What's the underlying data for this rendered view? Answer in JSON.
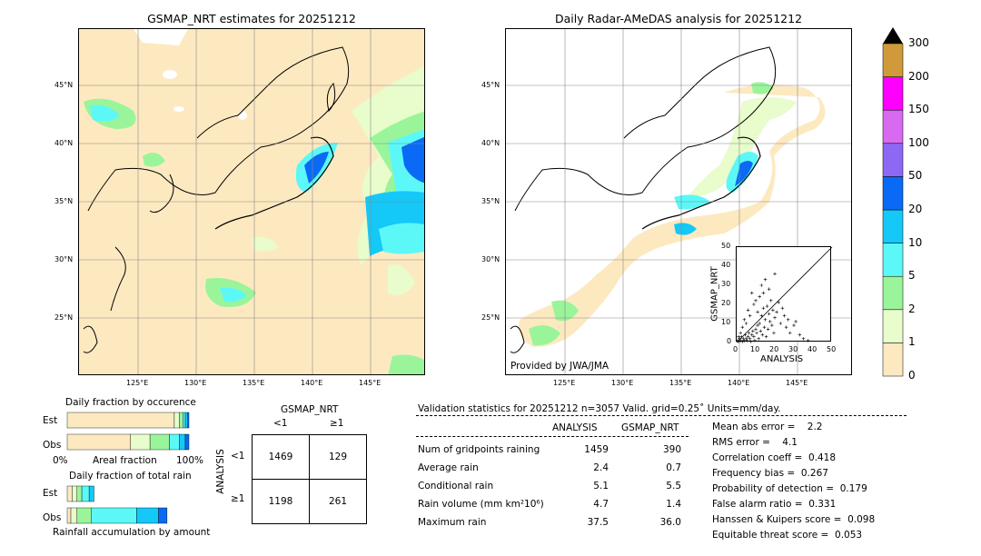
{
  "map_left": {
    "title": "GSMAP_NRT estimates for 20251212",
    "lon_ticks": [
      "125°E",
      "130°E",
      "135°E",
      "140°E",
      "145°E"
    ],
    "lat_ticks": [
      "45°N",
      "40°N",
      "35°N",
      "30°N",
      "25°N"
    ]
  },
  "map_right": {
    "title": "Daily Radar-AMeDAS analysis for 20251212",
    "lon_ticks": [
      "125°E",
      "130°E",
      "135°E",
      "140°E",
      "145°E"
    ],
    "lat_ticks": [
      "45°N",
      "40°N",
      "35°N",
      "30°N",
      "25°N"
    ],
    "credit": "Provided by JWA/JMA"
  },
  "colorbar": {
    "labels": [
      "0",
      "1",
      "2",
      "5",
      "10",
      "20",
      "50",
      "100",
      "150",
      "200",
      "300"
    ],
    "colors": [
      "#fde9c0",
      "#e8fccc",
      "#9af59a",
      "#5cf8f8",
      "#14c8f8",
      "#0a6af5",
      "#8c68f5",
      "#d86af2",
      "#ff00ff",
      "#d09a3a"
    ]
  },
  "chart_data": [
    {
      "type": "scatter",
      "xlabel": "ANALYSIS",
      "ylabel": "GSMAP_NRT",
      "xlim": [
        0,
        50
      ],
      "ylim": [
        0,
        50
      ],
      "x_ticks": [
        "0",
        "10",
        "20",
        "30",
        "40",
        "50"
      ],
      "y_ticks": [
        "0",
        "10",
        "20",
        "30",
        "40",
        "50"
      ],
      "points": [
        [
          0.5,
          1
        ],
        [
          1,
          0.5
        ],
        [
          1.5,
          2
        ],
        [
          2,
          1
        ],
        [
          2.5,
          3
        ],
        [
          3,
          0.5
        ],
        [
          3.5,
          2
        ],
        [
          4,
          1
        ],
        [
          4.5,
          4
        ],
        [
          5,
          2
        ],
        [
          5.5,
          1
        ],
        [
          6,
          3
        ],
        [
          6.5,
          5
        ],
        [
          7,
          2
        ],
        [
          7.5,
          0.5
        ],
        [
          8,
          4
        ],
        [
          8.5,
          6
        ],
        [
          9,
          3
        ],
        [
          9.5,
          1
        ],
        [
          10,
          7
        ],
        [
          10.5,
          5
        ],
        [
          11,
          9
        ],
        [
          11.5,
          2
        ],
        [
          12,
          10
        ],
        [
          12.5,
          6
        ],
        [
          13,
          14
        ],
        [
          13.5,
          4
        ],
        [
          14,
          18
        ],
        [
          14.5,
          8
        ],
        [
          15,
          12
        ],
        [
          15.5,
          3
        ],
        [
          16,
          19
        ],
        [
          16.5,
          7
        ],
        [
          17,
          15
        ],
        [
          17.5,
          11
        ],
        [
          18,
          22
        ],
        [
          18.5,
          9
        ],
        [
          19,
          17
        ],
        [
          19.5,
          5
        ],
        [
          20,
          13
        ],
        [
          21,
          16
        ],
        [
          22,
          21
        ],
        [
          23,
          10
        ],
        [
          24,
          18
        ],
        [
          25,
          14
        ],
        [
          26,
          8
        ],
        [
          27,
          12
        ],
        [
          28,
          5
        ],
        [
          30,
          9
        ],
        [
          31,
          11
        ],
        [
          33,
          4
        ],
        [
          35,
          2
        ],
        [
          37.5,
          1
        ],
        [
          20,
          36
        ],
        [
          17,
          28
        ],
        [
          12,
          24
        ],
        [
          9,
          20
        ],
        [
          8,
          26
        ],
        [
          15,
          33
        ],
        [
          14,
          26
        ],
        [
          6,
          17
        ],
        [
          4,
          12
        ],
        [
          3,
          8
        ],
        [
          11,
          16
        ],
        [
          2,
          5
        ],
        [
          1,
          3
        ],
        [
          7,
          14
        ],
        [
          10,
          22
        ],
        [
          13,
          30
        ],
        [
          5,
          10
        ]
      ]
    },
    {
      "type": "bar",
      "title": "Daily fraction by occurence",
      "categories": [
        "Est",
        "Obs"
      ],
      "left_tick": "0%",
      "right_tick": "100%",
      "center_label": "Areal fraction",
      "series_colors": [
        "#fde9c0",
        "#e8fccc",
        "#9af59a",
        "#5cf8f8",
        "#14c8f8",
        "#0a6af5"
      ],
      "rows": [
        {
          "name": "Est",
          "fractions": [
            0.88,
            0.04,
            0.03,
            0.02,
            0.02,
            0.01
          ]
        },
        {
          "name": "Obs",
          "fractions": [
            0.52,
            0.16,
            0.16,
            0.08,
            0.05,
            0.03
          ]
        }
      ]
    },
    {
      "type": "bar",
      "title": "Daily fraction of total rain",
      "categories": [
        "Est",
        "Obs"
      ],
      "bottom_label": "Rainfall accumulation by amount",
      "series_colors": [
        "#fde9c0",
        "#e8fccc",
        "#9af59a",
        "#5cf8f8",
        "#14c8f8",
        "#0a6af5"
      ],
      "rows": [
        {
          "name": "Est",
          "fractions": [
            0.04,
            0.04,
            0.04,
            0.06,
            0.04,
            0.0
          ],
          "scale": 0.25
        },
        {
          "name": "Obs",
          "fractions": [
            0.03,
            0.05,
            0.12,
            0.37,
            0.18,
            0.07
          ],
          "scale": 1.0
        }
      ]
    }
  ],
  "contingency": {
    "header": "GSMAP_NRT",
    "col_labels": [
      "<1",
      "≥1"
    ],
    "row_title": "ANALYSIS",
    "row_labels": [
      "<1",
      "≥1"
    ],
    "cells": [
      [
        "1469",
        "129"
      ],
      [
        "1198",
        "261"
      ]
    ]
  },
  "validation": {
    "title": "Validation statistics for 20251212  n=3057 Valid. grid=0.25˚ Units=mm/day.",
    "col_analysis": "ANALYSIS",
    "col_gsmap": "GSMAP_NRT",
    "rows": [
      {
        "label": "Num of gridpoints raining",
        "analysis": "1459",
        "gsmap": "390"
      },
      {
        "label": "Average rain",
        "analysis": "2.4",
        "gsmap": "0.7"
      },
      {
        "label": "Conditional rain",
        "analysis": "5.1",
        "gsmap": "5.5"
      },
      {
        "label": "Rain volume (mm km²10⁶)",
        "analysis": "4.7",
        "gsmap": "1.4"
      },
      {
        "label": "Maximum rain",
        "analysis": "37.5",
        "gsmap": "36.0"
      }
    ],
    "scores": [
      "Mean abs error =    2.2",
      "RMS error =    4.1",
      "Correlation coeff =  0.418",
      "Frequency bias =  0.267",
      "Probability of detection =  0.179",
      "False alarm ratio =  0.331",
      "Hanssen & Kuipers score =  0.098",
      "Equitable threat score =  0.053"
    ]
  }
}
